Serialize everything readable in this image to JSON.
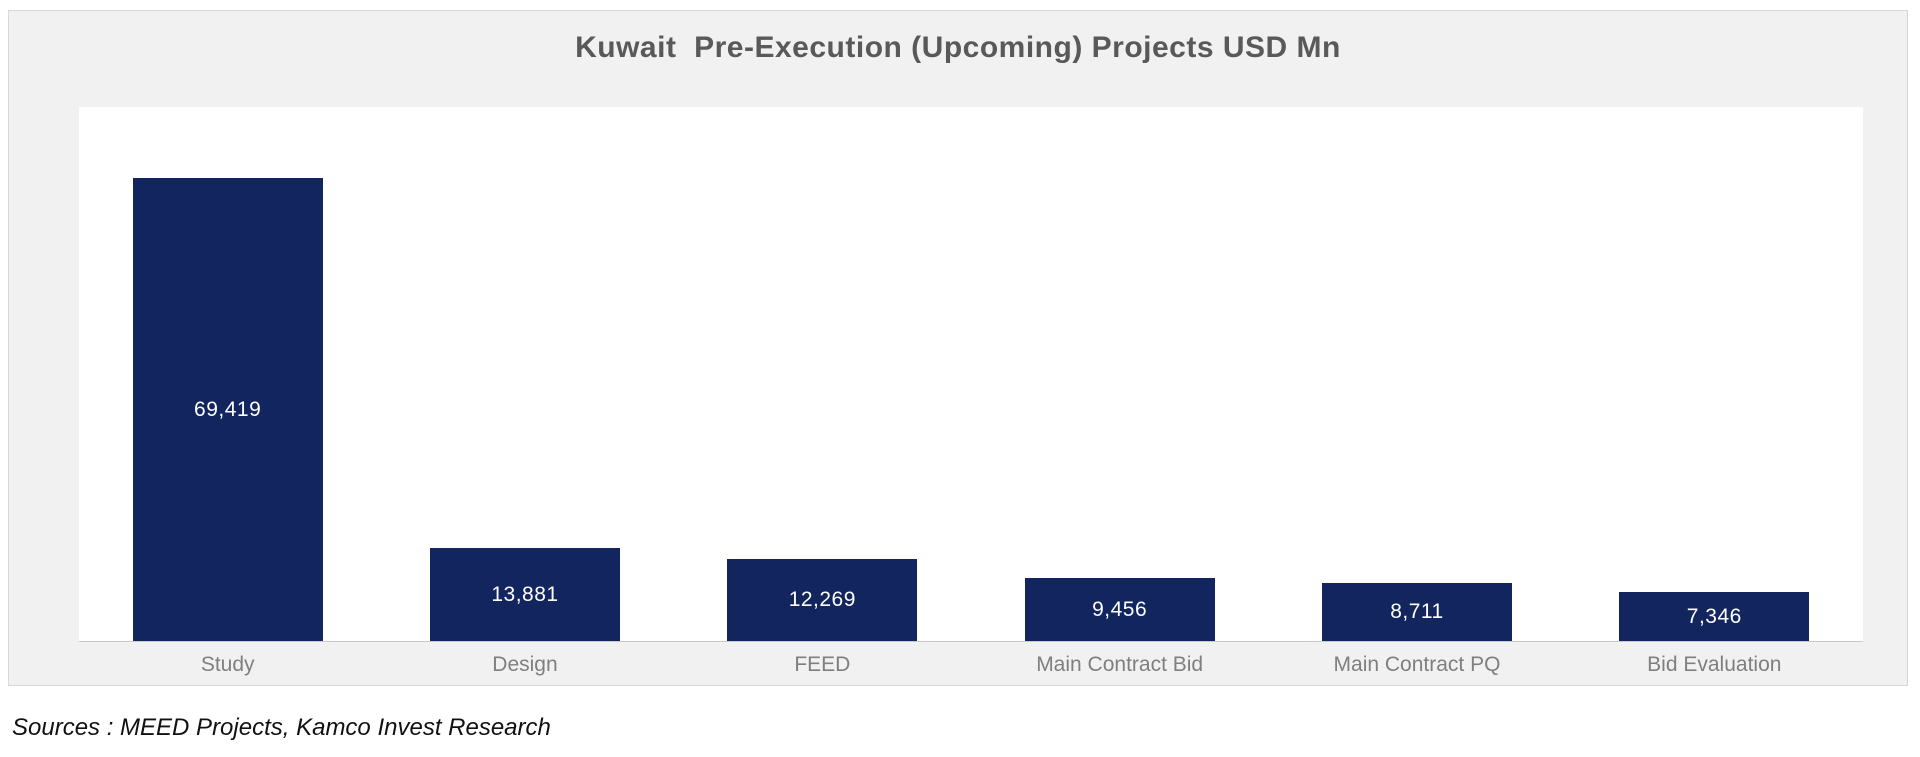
{
  "chart_data": {
    "type": "bar",
    "title": "Kuwait  Pre-Execution (Upcoming) Projects USD Mn",
    "categories": [
      "Study",
      "Design",
      "FEED",
      "Main Contract Bid",
      "Main Contract PQ",
      "Bid Evaluation"
    ],
    "values": [
      69419,
      13881,
      12269,
      9456,
      8711,
      7346
    ],
    "value_labels": [
      "69,419",
      "13,881",
      "12,269",
      "9,456",
      "8,711",
      "7,346"
    ],
    "xlabel": "",
    "ylabel": "",
    "ylim": [
      0,
      80000
    ],
    "grid": false,
    "legend": "none",
    "bar_color": "#12255e",
    "value_label_color": "#ffffff",
    "category_label_color": "#7f7f7f",
    "title_color": "#595959",
    "plot_background": "#ffffff",
    "card_background": "#f1f1f1",
    "axis_line_color": "#c9c9c9"
  },
  "source_note": "Sources : MEED Projects, Kamco Invest Research"
}
